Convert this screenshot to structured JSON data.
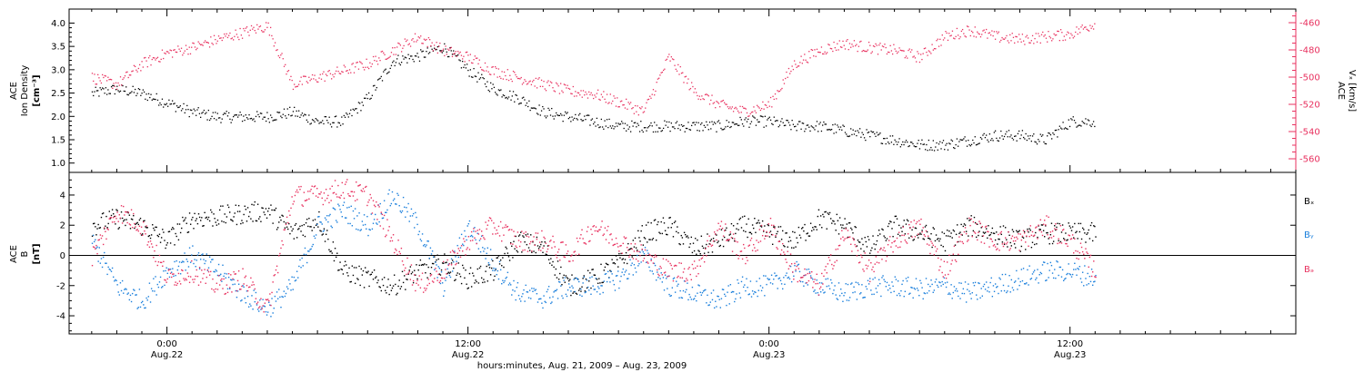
{
  "chart_data": [
    {
      "type": "scatter",
      "panel": "top",
      "left_ylabel": [
        "ACE",
        "Ion Density",
        "[cm⁻³]"
      ],
      "right_ylabel": [
        "ACE",
        "Vₓ [km/s]"
      ],
      "left_ylim": [
        0.8,
        4.3
      ],
      "right_ylim": [
        -570,
        -450
      ],
      "left_ticks": [
        1.0,
        1.5,
        2.0,
        2.5,
        3.0,
        3.5,
        4.0
      ],
      "left_tick_labels": [
        "1.0",
        "1.5",
        "2.0",
        "2.5",
        "3.0",
        "3.5",
        "4.0"
      ],
      "right_ticks": [
        -560,
        -540,
        -520,
        -500,
        -480,
        -460
      ],
      "right_tick_labels": [
        "-560",
        "-540",
        "-520",
        "-500",
        "-480",
        "-460"
      ],
      "series": [
        {
          "axis": "left",
          "color": "#000000",
          "x_hours": [
            -3,
            -2,
            -1,
            0,
            1,
            2,
            3,
            4,
            5,
            6,
            7,
            8,
            9,
            10,
            11,
            12,
            13,
            14,
            15,
            16,
            17,
            18,
            19,
            20,
            21,
            22,
            23,
            24,
            25,
            26,
            27,
            28,
            29,
            30,
            31,
            32,
            33,
            34,
            35,
            36,
            37
          ],
          "values": [
            2.5,
            2.6,
            2.5,
            2.3,
            2.1,
            2.0,
            2.0,
            2.0,
            2.1,
            1.9,
            1.9,
            2.4,
            3.2,
            3.3,
            3.5,
            3.0,
            2.6,
            2.4,
            2.1,
            2.0,
            1.9,
            1.8,
            1.8,
            1.8,
            1.8,
            1.8,
            1.9,
            1.9,
            1.8,
            1.8,
            1.7,
            1.6,
            1.5,
            1.4,
            1.4,
            1.5,
            1.6,
            1.6,
            1.5,
            1.9,
            1.9
          ]
        },
        {
          "axis": "right",
          "color": "#e8315f",
          "x_hours": [
            -3,
            -2,
            -1,
            0,
            1,
            2,
            3,
            4,
            5,
            6,
            7,
            8,
            9,
            10,
            11,
            12,
            13,
            14,
            15,
            16,
            17,
            18,
            19,
            20,
            21,
            22,
            23,
            24,
            25,
            26,
            27,
            28,
            29,
            30,
            31,
            32,
            33,
            34,
            35,
            36,
            37
          ],
          "values": [
            -500,
            -505,
            -490,
            -482,
            -478,
            -472,
            -467,
            -462,
            -505,
            -500,
            -495,
            -490,
            -480,
            -470,
            -480,
            -485,
            -495,
            -500,
            -505,
            -510,
            -512,
            -518,
            -525,
            -485,
            -510,
            -520,
            -525,
            -520,
            -490,
            -480,
            -475,
            -478,
            -480,
            -485,
            -470,
            -465,
            -470,
            -472,
            -470,
            -468,
            -460
          ]
        }
      ]
    },
    {
      "type": "scatter",
      "panel": "bottom",
      "left_ylabel": [
        "ACE",
        "B",
        "[nT]"
      ],
      "ylim": [
        -5.2,
        5.5
      ],
      "ticks": [
        -4,
        -2,
        0,
        2,
        4
      ],
      "tick_labels": [
        "-4",
        "-2",
        "0",
        "2",
        "4"
      ],
      "zero_line": true,
      "legend_position": "right",
      "series": [
        {
          "name": "Bₓ",
          "color": "#000000",
          "x_hours": [
            -3,
            -2,
            -1,
            0,
            1,
            2,
            3,
            4,
            5,
            6,
            7,
            8,
            9,
            10,
            11,
            12,
            13,
            14,
            15,
            16,
            17,
            18,
            19,
            20,
            21,
            22,
            23,
            24,
            25,
            26,
            27,
            28,
            29,
            30,
            31,
            32,
            33,
            34,
            35,
            36,
            37
          ],
          "values": [
            2,
            2.5,
            2,
            1,
            2.5,
            2.6,
            2.8,
            3,
            1.5,
            2.5,
            -1,
            -1.5,
            -2,
            -1,
            -0.5,
            -1.5,
            -1,
            1,
            0.5,
            -2,
            -1.5,
            -0.5,
            1.5,
            2,
            0.5,
            1,
            2,
            1.5,
            1,
            2.5,
            2,
            0.5,
            2,
            1.5,
            1,
            2,
            1.5,
            1,
            1.5,
            1.5,
            1.5
          ]
        },
        {
          "name": "Bᵧ",
          "color": "#1a7fdc",
          "x_hours": [
            -3,
            -2,
            -1,
            0,
            1,
            2,
            3,
            4,
            5,
            6,
            7,
            8,
            9,
            10,
            11,
            12,
            13,
            14,
            15,
            16,
            17,
            18,
            19,
            20,
            21,
            22,
            23,
            24,
            25,
            26,
            27,
            28,
            29,
            30,
            31,
            32,
            33,
            34,
            35,
            36,
            37
          ],
          "values": [
            1,
            -2,
            -3,
            -1,
            0,
            -1,
            -2.5,
            -3.5,
            -2,
            2,
            3,
            2,
            4,
            2,
            -2,
            2,
            -0.5,
            -2.5,
            -2.8,
            -2,
            -2,
            -1.5,
            0,
            -2,
            -2.5,
            -3,
            -2,
            -2,
            -1,
            -2,
            -2.5,
            -2,
            -2,
            -2.2,
            -2,
            -2.5,
            -2,
            -1.5,
            -1,
            -1,
            -1.5
          ]
        },
        {
          "name": "Bₔ",
          "color": "#e8315f",
          "x_hours": [
            -3,
            -2,
            -1,
            0,
            1,
            2,
            3,
            4,
            5,
            6,
            7,
            8,
            9,
            10,
            11,
            12,
            13,
            14,
            15,
            16,
            17,
            18,
            19,
            20,
            21,
            22,
            23,
            24,
            25,
            26,
            27,
            28,
            29,
            30,
            31,
            32,
            33,
            34,
            35,
            36,
            37
          ],
          "values": [
            0,
            3,
            2,
            -1.5,
            -1,
            -2,
            -1.5,
            -3.5,
            4,
            4,
            4.5,
            4,
            1,
            -2,
            -1,
            1,
            2,
            1,
            1,
            0,
            2,
            1,
            0,
            -1,
            -1,
            2,
            0,
            2,
            -1,
            -2,
            1.5,
            -1,
            1,
            2,
            -1,
            2,
            1,
            1,
            2,
            1,
            -1
          ]
        }
      ]
    }
  ],
  "x_axis": {
    "tick_hours": [
      0,
      12,
      24,
      36
    ],
    "tick_time_labels": [
      "0:00",
      "12:00",
      "0:00",
      "12:00"
    ],
    "tick_date_labels": [
      "Aug.22",
      "Aug.22",
      "Aug.23",
      "Aug.23"
    ],
    "xlim_hours": [
      -3.9,
      45
    ],
    "label": "hours:minutes, Aug. 21, 2009 – Aug. 23, 2009"
  }
}
